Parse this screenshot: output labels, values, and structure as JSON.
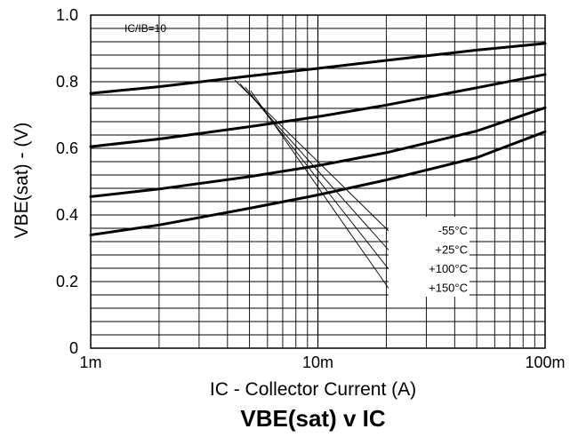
{
  "chart_data": {
    "type": "line",
    "title": "VBE(sat) v IC",
    "xlabel": "IC - Collector Current (A)",
    "ylabel": "VBE(sat) - (V)",
    "x_scale": "log",
    "xlim": [
      0.001,
      0.1
    ],
    "ylim": [
      0,
      1.0
    ],
    "grid": true,
    "x_ticks": [
      {
        "value": 0.001,
        "label": "1m"
      },
      {
        "value": 0.01,
        "label": "10m"
      },
      {
        "value": 0.1,
        "label": "100m"
      }
    ],
    "y_ticks": [
      {
        "value": 0,
        "label": "0"
      },
      {
        "value": 0.2,
        "label": "0.2"
      },
      {
        "value": 0.4,
        "label": "0.4"
      },
      {
        "value": 0.6,
        "label": "0.6"
      },
      {
        "value": 0.8,
        "label": "0.8"
      },
      {
        "value": 1.0,
        "label": "1.0"
      }
    ],
    "annotation": "IC/IB=10",
    "legend_position": "bottom-center",
    "series": [
      {
        "name": "-55°C",
        "x": [
          0.001,
          0.002,
          0.005,
          0.01,
          0.02,
          0.05,
          0.1
        ],
        "y": [
          0.765,
          0.785,
          0.817,
          0.84,
          0.864,
          0.895,
          0.915
        ]
      },
      {
        "name": "+25°C",
        "x": [
          0.001,
          0.002,
          0.005,
          0.01,
          0.02,
          0.05,
          0.1
        ],
        "y": [
          0.605,
          0.628,
          0.665,
          0.695,
          0.73,
          0.782,
          0.822
        ]
      },
      {
        "name": "+100°C",
        "x": [
          0.001,
          0.002,
          0.005,
          0.01,
          0.02,
          0.05,
          0.1
        ],
        "y": [
          0.455,
          0.478,
          0.515,
          0.548,
          0.587,
          0.652,
          0.722
        ]
      },
      {
        "name": "+150°C",
        "x": [
          0.001,
          0.002,
          0.005,
          0.01,
          0.02,
          0.05,
          0.1
        ],
        "y": [
          0.34,
          0.37,
          0.42,
          0.46,
          0.505,
          0.572,
          0.65
        ]
      }
    ]
  }
}
